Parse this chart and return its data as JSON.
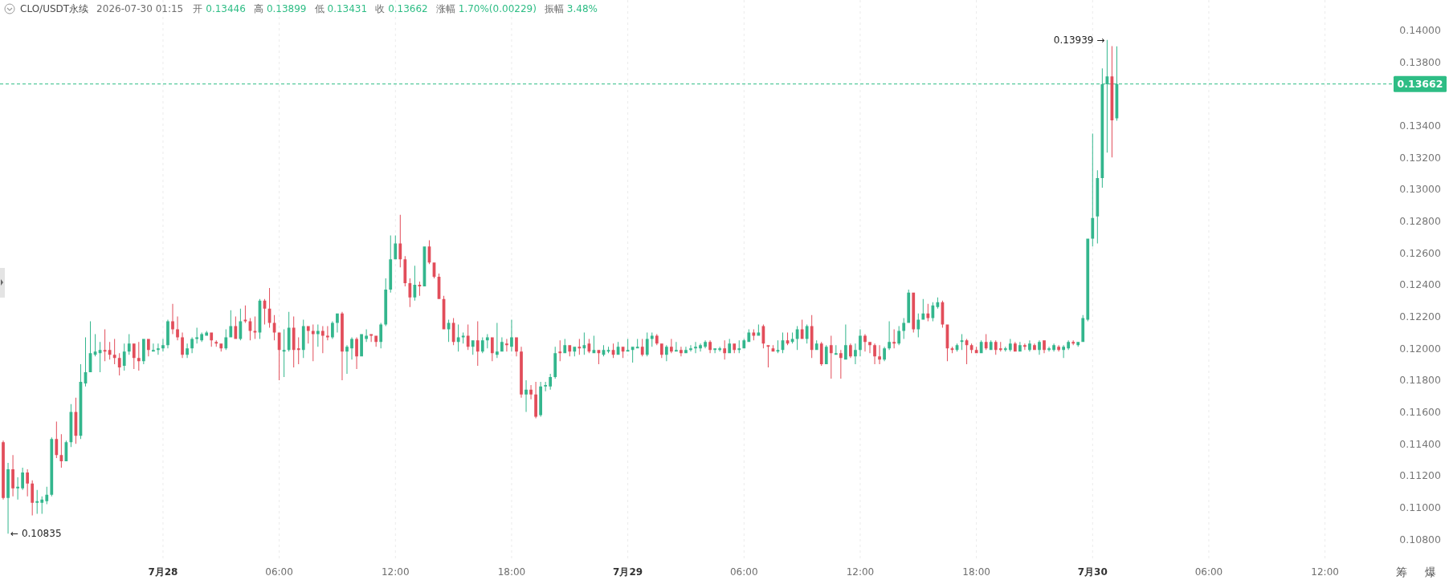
{
  "chart_data": {
    "type": "candlestick",
    "title": "CLO/USDT永续",
    "subtitle": "2026-07-30 01:15",
    "annotations": [
      "开 0.13446",
      "高 0.13899",
      "低 0.13431",
      "收 0.13662",
      "涨幅 1.70%(0.00229)",
      "振幅 3.48%",
      "筹",
      "爆",
      {
        "text": "← 0.10835",
        "x": "2026-07-27T16:00",
        "y": 0.10835
      },
      {
        "text": "0.13939 →",
        "x": "2026-07-30T00:45",
        "y": 0.13939
      }
    ],
    "x": [
      "2026-07-27T15:45",
      "2026-07-27T16:00",
      "2026-07-27T16:15",
      "2026-07-27T16:30",
      "2026-07-27T16:45",
      "2026-07-27T17:00",
      "2026-07-27T17:15",
      "2026-07-27T17:30",
      "2026-07-27T17:45",
      "2026-07-27T18:00",
      "2026-07-27T18:15",
      "2026-07-27T18:30",
      "2026-07-27T18:45",
      "2026-07-27T19:00",
      "2026-07-27T19:15",
      "2026-07-27T19:30",
      "2026-07-27T19:45",
      "2026-07-27T20:00",
      "2026-07-27T20:15",
      "2026-07-27T20:30",
      "2026-07-27T20:45",
      "2026-07-27T21:00",
      "2026-07-27T21:15",
      "2026-07-27T21:30",
      "2026-07-27T21:45",
      "2026-07-27T22:00",
      "2026-07-27T22:15",
      "2026-07-27T22:30",
      "2026-07-27T22:45",
      "2026-07-27T23:00",
      "2026-07-27T23:15",
      "2026-07-27T23:30",
      "2026-07-27T23:45",
      "2026-07-28T00:00",
      "2026-07-28T00:15",
      "2026-07-28T00:30",
      "2026-07-28T00:45",
      "2026-07-28T01:00",
      "2026-07-28T01:15",
      "2026-07-28T01:30",
      "2026-07-28T01:45",
      "2026-07-28T02:00",
      "2026-07-28T02:15",
      "2026-07-28T02:30",
      "2026-07-28T02:45",
      "2026-07-28T03:00",
      "2026-07-28T03:15",
      "2026-07-28T03:30",
      "2026-07-28T03:45",
      "2026-07-28T04:00",
      "2026-07-28T04:15",
      "2026-07-28T04:30",
      "2026-07-28T04:45",
      "2026-07-28T05:00",
      "2026-07-28T05:15",
      "2026-07-28T05:30",
      "2026-07-28T05:45",
      "2026-07-28T06:00",
      "2026-07-28T06:15",
      "2026-07-28T06:30",
      "2026-07-28T06:45",
      "2026-07-28T07:00",
      "2026-07-28T07:15",
      "2026-07-28T07:30",
      "2026-07-28T07:45",
      "2026-07-28T08:00",
      "2026-07-28T08:15",
      "2026-07-28T08:30",
      "2026-07-28T08:45",
      "2026-07-28T09:00",
      "2026-07-28T09:15",
      "2026-07-28T09:30",
      "2026-07-28T09:45",
      "2026-07-28T10:00",
      "2026-07-28T10:15",
      "2026-07-28T10:30",
      "2026-07-28T10:45",
      "2026-07-28T11:00",
      "2026-07-28T11:15",
      "2026-07-28T11:30",
      "2026-07-28T11:45",
      "2026-07-28T12:00",
      "2026-07-28T12:15",
      "2026-07-28T12:30",
      "2026-07-28T12:45",
      "2026-07-28T13:00",
      "2026-07-28T13:15",
      "2026-07-28T13:30",
      "2026-07-28T13:45",
      "2026-07-28T14:00",
      "2026-07-28T14:15",
      "2026-07-28T14:30",
      "2026-07-28T14:45",
      "2026-07-28T15:00",
      "2026-07-28T15:15",
      "2026-07-28T15:30",
      "2026-07-28T15:45",
      "2026-07-28T16:00",
      "2026-07-28T16:15",
      "2026-07-28T16:30",
      "2026-07-28T16:45",
      "2026-07-28T17:00",
      "2026-07-28T17:15",
      "2026-07-28T17:30",
      "2026-07-28T17:45",
      "2026-07-28T18:00",
      "2026-07-28T18:15",
      "2026-07-28T18:30",
      "2026-07-28T18:45",
      "2026-07-28T19:00",
      "2026-07-28T19:15",
      "2026-07-28T19:30",
      "2026-07-28T19:45",
      "2026-07-28T20:00",
      "2026-07-28T20:15",
      "2026-07-28T20:30",
      "2026-07-28T20:45",
      "2026-07-28T21:00",
      "2026-07-28T21:15",
      "2026-07-28T21:30",
      "2026-07-28T21:45",
      "2026-07-28T22:00",
      "2026-07-28T22:15",
      "2026-07-28T22:30",
      "2026-07-28T22:45",
      "2026-07-28T23:00",
      "2026-07-28T23:15",
      "2026-07-28T23:30",
      "2026-07-28T23:45",
      "2026-07-29T00:00",
      "2026-07-29T00:15",
      "2026-07-29T00:30",
      "2026-07-29T00:45",
      "2026-07-29T01:00",
      "2026-07-29T01:15",
      "2026-07-29T01:30",
      "2026-07-29T01:45",
      "2026-07-29T02:00",
      "2026-07-29T02:15",
      "2026-07-29T02:30",
      "2026-07-29T02:45",
      "2026-07-29T03:00",
      "2026-07-29T03:15",
      "2026-07-29T03:30",
      "2026-07-29T03:45",
      "2026-07-29T04:00",
      "2026-07-29T04:15",
      "2026-07-29T04:30",
      "2026-07-29T04:45",
      "2026-07-29T05:00",
      "2026-07-29T05:15",
      "2026-07-29T05:30",
      "2026-07-29T05:45",
      "2026-07-29T06:00",
      "2026-07-29T06:15",
      "2026-07-29T06:30",
      "2026-07-29T06:45",
      "2026-07-29T07:00",
      "2026-07-29T07:15",
      "2026-07-29T07:30",
      "2026-07-29T07:45",
      "2026-07-29T08:00",
      "2026-07-29T08:15",
      "2026-07-29T08:30",
      "2026-07-29T08:45",
      "2026-07-29T09:00",
      "2026-07-29T09:15",
      "2026-07-29T09:30",
      "2026-07-29T09:45",
      "2026-07-29T10:00",
      "2026-07-29T10:15",
      "2026-07-29T10:30",
      "2026-07-29T10:45",
      "2026-07-29T11:00",
      "2026-07-29T11:15",
      "2026-07-29T11:30",
      "2026-07-29T11:45",
      "2026-07-29T12:00",
      "2026-07-29T12:15",
      "2026-07-29T12:30",
      "2026-07-29T12:45",
      "2026-07-29T13:00",
      "2026-07-29T13:15",
      "2026-07-29T13:30",
      "2026-07-29T13:45",
      "2026-07-29T14:00",
      "2026-07-29T14:15",
      "2026-07-29T14:30",
      "2026-07-29T14:45",
      "2026-07-29T15:00",
      "2026-07-29T15:15",
      "2026-07-29T15:30",
      "2026-07-29T15:45",
      "2026-07-29T16:00",
      "2026-07-29T16:15",
      "2026-07-29T16:30",
      "2026-07-29T16:45",
      "2026-07-29T17:00",
      "2026-07-29T17:15",
      "2026-07-29T17:30",
      "2026-07-29T17:45",
      "2026-07-29T18:00",
      "2026-07-29T18:15",
      "2026-07-29T18:30",
      "2026-07-29T18:45",
      "2026-07-29T19:00",
      "2026-07-29T19:15",
      "2026-07-29T19:30",
      "2026-07-29T19:45",
      "2026-07-29T20:00",
      "2026-07-29T20:15",
      "2026-07-29T20:30",
      "2026-07-29T20:45",
      "2026-07-29T21:00",
      "2026-07-29T21:15",
      "2026-07-29T21:30",
      "2026-07-29T21:45",
      "2026-07-29T22:00",
      "2026-07-29T22:15",
      "2026-07-29T22:30",
      "2026-07-29T22:45",
      "2026-07-29T23:00",
      "2026-07-29T23:15",
      "2026-07-29T23:30",
      "2026-07-29T23:45",
      "2026-07-30T00:00",
      "2026-07-30T00:15",
      "2026-07-30T00:30",
      "2026-07-30T00:45",
      "2026-07-30T01:00",
      "2026-07-30T01:15"
    ],
    "ohlc": [
      [
        0.1141,
        0.1142,
        0.1105,
        0.1106
      ],
      [
        0.1106,
        0.1128,
        0.10835,
        0.1124
      ],
      [
        0.1124,
        0.1133,
        0.1107,
        0.1112
      ],
      [
        0.1112,
        0.1119,
        0.1105,
        0.1113
      ],
      [
        0.1112,
        0.1125,
        0.1111,
        0.1122
      ],
      [
        0.1122,
        0.1124,
        0.1107,
        0.1115
      ],
      [
        0.1115,
        0.1117,
        0.1095,
        0.1103
      ],
      [
        0.1103,
        0.1111,
        0.1096,
        0.1104
      ],
      [
        0.1103,
        0.1107,
        0.1096,
        0.1105
      ],
      [
        0.1104,
        0.1113,
        0.1102,
        0.1108
      ],
      [
        0.1108,
        0.1144,
        0.1107,
        0.1143
      ],
      [
        0.1143,
        0.1154,
        0.1131,
        0.1133
      ],
      [
        0.1133,
        0.1146,
        0.1125,
        0.1129
      ],
      [
        0.1129,
        0.1142,
        0.1129,
        0.1141
      ],
      [
        0.1141,
        0.1165,
        0.1138,
        0.116
      ],
      [
        0.116,
        0.1169,
        0.114,
        0.1145
      ],
      [
        0.1145,
        0.119,
        0.1143,
        0.1179
      ],
      [
        0.1178,
        0.1207,
        0.1176,
        0.1185
      ],
      [
        0.1185,
        0.1217,
        0.1185,
        0.1197
      ],
      [
        0.1196,
        0.1209,
        0.1195,
        0.1198
      ],
      [
        0.1197,
        0.1204,
        0.1185,
        0.1199
      ],
      [
        0.1199,
        0.1212,
        0.1192,
        0.1198
      ],
      [
        0.1199,
        0.1204,
        0.1193,
        0.1196
      ],
      [
        0.1196,
        0.1206,
        0.119,
        0.1194
      ],
      [
        0.1194,
        0.1197,
        0.1183,
        0.1188
      ],
      [
        0.1189,
        0.1203,
        0.1186,
        0.1198
      ],
      [
        0.1198,
        0.1209,
        0.1196,
        0.1203
      ],
      [
        0.1203,
        0.1203,
        0.1187,
        0.1194
      ],
      [
        0.1194,
        0.1204,
        0.1186,
        0.1192
      ],
      [
        0.1192,
        0.1206,
        0.119,
        0.1206
      ],
      [
        0.1206,
        0.1206,
        0.1195,
        0.1199
      ],
      [
        0.1198,
        0.1203,
        0.1198,
        0.1199
      ],
      [
        0.1199,
        0.1203,
        0.1196,
        0.12
      ],
      [
        0.12,
        0.1206,
        0.1198,
        0.1202
      ],
      [
        0.1202,
        0.1218,
        0.12,
        0.1217
      ],
      [
        0.1217,
        0.1228,
        0.1209,
        0.1212
      ],
      [
        0.1212,
        0.122,
        0.1205,
        0.1207
      ],
      [
        0.1207,
        0.121,
        0.1194,
        0.1196
      ],
      [
        0.1196,
        0.1203,
        0.1194,
        0.12
      ],
      [
        0.12,
        0.1207,
        0.1197,
        0.1206
      ],
      [
        0.1206,
        0.1213,
        0.1203,
        0.1207
      ],
      [
        0.1205,
        0.121,
        0.1204,
        0.1209
      ],
      [
        0.1208,
        0.1211,
        0.1208,
        0.121
      ],
      [
        0.121,
        0.121,
        0.1201,
        0.1205
      ],
      [
        0.1204,
        0.1205,
        0.1201,
        0.1203
      ],
      [
        0.1203,
        0.1203,
        0.1198,
        0.12
      ],
      [
        0.12,
        0.1212,
        0.1199,
        0.1207
      ],
      [
        0.1207,
        0.1224,
        0.1207,
        0.1214
      ],
      [
        0.1214,
        0.122,
        0.1206,
        0.1206
      ],
      [
        0.1206,
        0.1225,
        0.1205,
        0.1217
      ],
      [
        0.1218,
        0.1227,
        0.1216,
        0.1217
      ],
      [
        0.1217,
        0.1219,
        0.1205,
        0.1211
      ],
      [
        0.1211,
        0.122,
        0.1206,
        0.121
      ],
      [
        0.121,
        0.1231,
        0.1206,
        0.123
      ],
      [
        0.123,
        0.1231,
        0.1215,
        0.1225
      ],
      [
        0.1225,
        0.1238,
        0.1213,
        0.1216
      ],
      [
        0.1216,
        0.1221,
        0.1205,
        0.121
      ],
      [
        0.121,
        0.121,
        0.118,
        0.1199
      ],
      [
        0.1198,
        0.1212,
        0.1182,
        0.1199
      ],
      [
        0.1199,
        0.1223,
        0.1198,
        0.1213
      ],
      [
        0.1213,
        0.122,
        0.1188,
        0.1199
      ],
      [
        0.12,
        0.1207,
        0.119,
        0.1199
      ],
      [
        0.1199,
        0.1218,
        0.1194,
        0.1214
      ],
      [
        0.1214,
        0.1214,
        0.1203,
        0.1211
      ],
      [
        0.1211,
        0.1215,
        0.1192,
        0.1209
      ],
      [
        0.1209,
        0.1215,
        0.1201,
        0.1211
      ],
      [
        0.1211,
        0.1214,
        0.1197,
        0.1208
      ],
      [
        0.1208,
        0.1214,
        0.1205,
        0.1207
      ],
      [
        0.1207,
        0.1217,
        0.1206,
        0.1216
      ],
      [
        0.1216,
        0.1222,
        0.121,
        0.1222
      ],
      [
        0.1222,
        0.1223,
        0.118,
        0.1198
      ],
      [
        0.1198,
        0.1202,
        0.1184,
        0.1201
      ],
      [
        0.12,
        0.1207,
        0.1193,
        0.1206
      ],
      [
        0.1206,
        0.1207,
        0.1187,
        0.1195
      ],
      [
        0.1195,
        0.1209,
        0.1195,
        0.1209
      ],
      [
        0.1206,
        0.1212,
        0.1204,
        0.1208
      ],
      [
        0.1209,
        0.1209,
        0.1204,
        0.1208
      ],
      [
        0.1208,
        0.1208,
        0.1201,
        0.1204
      ],
      [
        0.1204,
        0.1216,
        0.12,
        0.1215
      ],
      [
        0.1215,
        0.1244,
        0.1214,
        0.1237
      ],
      [
        0.1237,
        0.1271,
        0.1235,
        0.1256
      ],
      [
        0.1256,
        0.1271,
        0.1256,
        0.1266
      ],
      [
        0.1266,
        0.1284,
        0.1251,
        0.1256
      ],
      [
        0.1256,
        0.1258,
        0.1239,
        0.1241
      ],
      [
        0.1241,
        0.1244,
        0.1226,
        0.1232
      ],
      [
        0.1232,
        0.1252,
        0.123,
        0.124
      ],
      [
        0.124,
        0.1242,
        0.1233,
        0.1239
      ],
      [
        0.1239,
        0.1264,
        0.1239,
        0.1264
      ],
      [
        0.1264,
        0.1268,
        0.1253,
        0.1254
      ],
      [
        0.1254,
        0.1254,
        0.1244,
        0.1245
      ],
      [
        0.1245,
        0.1247,
        0.1231,
        0.1231
      ],
      [
        0.1231,
        0.1233,
        0.1212,
        0.1212
      ],
      [
        0.1212,
        0.1218,
        0.1204,
        0.1216
      ],
      [
        0.1216,
        0.1219,
        0.1202,
        0.1204
      ],
      [
        0.1204,
        0.1215,
        0.1198,
        0.1207
      ],
      [
        0.1207,
        0.121,
        0.1203,
        0.1208
      ],
      [
        0.1208,
        0.1215,
        0.1199,
        0.1201
      ],
      [
        0.1201,
        0.1205,
        0.1196,
        0.1205
      ],
      [
        0.1205,
        0.1217,
        0.1189,
        0.1198
      ],
      [
        0.1198,
        0.1207,
        0.1197,
        0.1205
      ],
      [
        0.1205,
        0.1209,
        0.12,
        0.1207
      ],
      [
        0.1207,
        0.1207,
        0.1192,
        0.1197
      ],
      [
        0.1196,
        0.1216,
        0.1194,
        0.1198
      ],
      [
        0.1198,
        0.1207,
        0.1198,
        0.1204
      ],
      [
        0.1203,
        0.1206,
        0.1198,
        0.1202
      ],
      [
        0.1201,
        0.1218,
        0.1198,
        0.1207
      ],
      [
        0.1207,
        0.1207,
        0.1195,
        0.1198
      ],
      [
        0.1198,
        0.1201,
        0.1169,
        0.1171
      ],
      [
        0.1171,
        0.118,
        0.116,
        0.1174
      ],
      [
        0.1174,
        0.1177,
        0.1168,
        0.1171
      ],
      [
        0.1171,
        0.1179,
        0.1156,
        0.1157
      ],
      [
        0.1158,
        0.1179,
        0.1157,
        0.1176
      ],
      [
        0.1176,
        0.1179,
        0.1173,
        0.1177
      ],
      [
        0.1176,
        0.1184,
        0.1174,
        0.1182
      ],
      [
        0.1182,
        0.1201,
        0.1181,
        0.1197
      ],
      [
        0.1198,
        0.1205,
        0.1192,
        0.1197
      ],
      [
        0.1197,
        0.1206,
        0.1197,
        0.1202
      ],
      [
        0.1202,
        0.1202,
        0.1195,
        0.1198
      ],
      [
        0.1198,
        0.1201,
        0.1195,
        0.1201
      ],
      [
        0.1201,
        0.1206,
        0.1196,
        0.12
      ],
      [
        0.12,
        0.121,
        0.1196,
        0.1202
      ],
      [
        0.1203,
        0.1206,
        0.1197,
        0.1198
      ],
      [
        0.1197,
        0.1208,
        0.1197,
        0.1199
      ],
      [
        0.1199,
        0.1199,
        0.119,
        0.1197
      ],
      [
        0.1196,
        0.1202,
        0.1195,
        0.1199
      ],
      [
        0.1198,
        0.1201,
        0.1197,
        0.1199
      ],
      [
        0.1199,
        0.1203,
        0.1194,
        0.1196
      ],
      [
        0.1196,
        0.1204,
        0.1196,
        0.1201
      ],
      [
        0.1201,
        0.1201,
        0.1194,
        0.1198
      ],
      [
        0.1198,
        0.1206,
        0.1198,
        0.1199
      ],
      [
        0.1199,
        0.1201,
        0.1191,
        0.1201
      ],
      [
        0.12,
        0.1206,
        0.12,
        0.1201
      ],
      [
        0.1201,
        0.1206,
        0.1195,
        0.1196
      ],
      [
        0.1196,
        0.121,
        0.1195,
        0.1206
      ],
      [
        0.1206,
        0.121,
        0.1201,
        0.1208
      ],
      [
        0.1208,
        0.1209,
        0.1202,
        0.1203
      ],
      [
        0.1203,
        0.1203,
        0.1194,
        0.1196
      ],
      [
        0.1196,
        0.1202,
        0.1192,
        0.1201
      ],
      [
        0.1201,
        0.1206,
        0.1197,
        0.1198
      ],
      [
        0.1198,
        0.1204,
        0.1198,
        0.1199
      ],
      [
        0.1199,
        0.1201,
        0.1195,
        0.1197
      ],
      [
        0.1197,
        0.1201,
        0.1197,
        0.1199
      ],
      [
        0.1199,
        0.1202,
        0.1198,
        0.12
      ],
      [
        0.12,
        0.1204,
        0.1197,
        0.1201
      ],
      [
        0.12,
        0.1203,
        0.1198,
        0.1202
      ],
      [
        0.1201,
        0.1205,
        0.12,
        0.1204
      ],
      [
        0.1204,
        0.1205,
        0.1197,
        0.1199
      ],
      [
        0.1199,
        0.12,
        0.1197,
        0.12
      ],
      [
        0.1199,
        0.1201,
        0.1198,
        0.12
      ],
      [
        0.12,
        0.1205,
        0.1193,
        0.1197
      ],
      [
        0.1197,
        0.1206,
        0.1197,
        0.1203
      ],
      [
        0.1203,
        0.1203,
        0.1197,
        0.1199
      ],
      [
        0.1199,
        0.1205,
        0.1197,
        0.12
      ],
      [
        0.12,
        0.1206,
        0.12,
        0.1205
      ],
      [
        0.1204,
        0.1212,
        0.1204,
        0.121
      ],
      [
        0.121,
        0.1212,
        0.1205,
        0.1208
      ],
      [
        0.1208,
        0.1215,
        0.1208,
        0.121
      ],
      [
        0.1214,
        0.1215,
        0.12,
        0.1203
      ],
      [
        0.1202,
        0.1202,
        0.1188,
        0.1201
      ],
      [
        0.12,
        0.1202,
        0.1198,
        0.1198
      ],
      [
        0.1198,
        0.1205,
        0.1197,
        0.1199
      ],
      [
        0.1199,
        0.121,
        0.1197,
        0.1205
      ],
      [
        0.1205,
        0.121,
        0.1202,
        0.1203
      ],
      [
        0.1204,
        0.121,
        0.1203,
        0.1206
      ],
      [
        0.1206,
        0.1214,
        0.1199,
        0.1212
      ],
      [
        0.1212,
        0.1218,
        0.1206,
        0.1206
      ],
      [
        0.1206,
        0.1215,
        0.1203,
        0.1214
      ],
      [
        0.1214,
        0.1221,
        0.1194,
        0.1199
      ],
      [
        0.1199,
        0.1205,
        0.1199,
        0.1203
      ],
      [
        0.1203,
        0.1204,
        0.1189,
        0.119
      ],
      [
        0.119,
        0.1202,
        0.119,
        0.1201
      ],
      [
        0.1202,
        0.1208,
        0.1181,
        0.1197
      ],
      [
        0.1196,
        0.1202,
        0.1196,
        0.1197
      ],
      [
        0.1197,
        0.1199,
        0.1181,
        0.1194
      ],
      [
        0.1193,
        0.1215,
        0.1193,
        0.1202
      ],
      [
        0.1202,
        0.1203,
        0.1194,
        0.1195
      ],
      [
        0.1195,
        0.1203,
        0.119,
        0.1199
      ],
      [
        0.1199,
        0.1212,
        0.1195,
        0.1208
      ],
      [
        0.1208,
        0.1209,
        0.1198,
        0.1204
      ],
      [
        0.1204,
        0.1204,
        0.1197,
        0.1202
      ],
      [
        0.1202,
        0.1203,
        0.119,
        0.1195
      ],
      [
        0.1195,
        0.1202,
        0.119,
        0.1193
      ],
      [
        0.1193,
        0.1201,
        0.1192,
        0.12
      ],
      [
        0.12,
        0.1217,
        0.1199,
        0.1204
      ],
      [
        0.1204,
        0.1212,
        0.12,
        0.1203
      ],
      [
        0.1203,
        0.1214,
        0.1202,
        0.1211
      ],
      [
        0.1211,
        0.1219,
        0.1206,
        0.1216
      ],
      [
        0.1216,
        0.1237,
        0.1216,
        0.1235
      ],
      [
        0.1235,
        0.1235,
        0.121,
        0.1212
      ],
      [
        0.1212,
        0.1222,
        0.1207,
        0.1218
      ],
      [
        0.1218,
        0.1231,
        0.1218,
        0.1222
      ],
      [
        0.1222,
        0.1228,
        0.1217,
        0.1219
      ],
      [
        0.1219,
        0.1229,
        0.1217,
        0.1227
      ],
      [
        0.1226,
        0.1232,
        0.1225,
        0.1229
      ],
      [
        0.1229,
        0.123,
        0.1213,
        0.1215
      ],
      [
        0.1215,
        0.1215,
        0.1192,
        0.12
      ],
      [
        0.12,
        0.1201,
        0.1197,
        0.1199
      ],
      [
        0.1199,
        0.1203,
        0.1198,
        0.1202
      ],
      [
        0.1204,
        0.1209,
        0.1199,
        0.1205
      ],
      [
        0.1205,
        0.1206,
        0.119,
        0.1202
      ],
      [
        0.1202,
        0.1203,
        0.1197,
        0.1199
      ],
      [
        0.1199,
        0.1201,
        0.1197,
        0.1197
      ],
      [
        0.1197,
        0.1205,
        0.1197,
        0.1204
      ],
      [
        0.1204,
        0.1209,
        0.1199,
        0.12
      ],
      [
        0.1199,
        0.1205,
        0.1199,
        0.1204
      ],
      [
        0.1204,
        0.1205,
        0.1196,
        0.1199
      ],
      [
        0.12,
        0.1204,
        0.1198,
        0.1199
      ],
      [
        0.1199,
        0.1201,
        0.1198,
        0.12
      ],
      [
        0.1199,
        0.1206,
        0.1198,
        0.1203
      ],
      [
        0.1203,
        0.1204,
        0.1198,
        0.1198
      ],
      [
        0.1198,
        0.1204,
        0.1198,
        0.1202
      ],
      [
        0.1202,
        0.1203,
        0.1199,
        0.1201
      ],
      [
        0.1199,
        0.1205,
        0.1198,
        0.1203
      ],
      [
        0.1202,
        0.1203,
        0.1199,
        0.1199
      ],
      [
        0.1199,
        0.1205,
        0.1196,
        0.1204
      ],
      [
        0.1205,
        0.1205,
        0.1197,
        0.1199
      ],
      [
        0.1199,
        0.1201,
        0.1198,
        0.12
      ],
      [
        0.1199,
        0.1203,
        0.1198,
        0.1202
      ],
      [
        0.1201,
        0.1202,
        0.1198,
        0.1199
      ],
      [
        0.1199,
        0.1202,
        0.1194,
        0.1201
      ],
      [
        0.12,
        0.1205,
        0.1199,
        0.1204
      ],
      [
        0.1204,
        0.1205,
        0.1202,
        0.1203
      ],
      [
        0.1202,
        0.1204,
        0.1201,
        0.1204
      ],
      [
        0.1204,
        0.1221,
        0.1204,
        0.1219
      ],
      [
        0.1218,
        0.1269,
        0.1217,
        0.1269
      ],
      [
        0.1269,
        0.1335,
        0.1264,
        0.1282
      ],
      [
        0.1283,
        0.1312,
        0.1266,
        0.1307
      ],
      [
        0.1307,
        0.1376,
        0.1301,
        0.1366
      ],
      [
        0.1366,
        0.13939,
        0.1323,
        0.1371
      ],
      [
        0.1371,
        0.139,
        0.132,
        0.13433
      ],
      [
        0.13446,
        0.13899,
        0.13431,
        0.13662
      ]
    ],
    "colors": [
      "#e24d5a",
      "#33b68d",
      "#e24d5a",
      "#33b68d",
      "#33b68d",
      "#e24d5a",
      "#e24d5a",
      "#33b68d",
      "#33b68d",
      "#33b68d",
      "#33b68d",
      "#e24d5a",
      "#e24d5a",
      "#33b68d",
      "#33b68d",
      "#e24d5a",
      "#33b68d",
      "#33b68d",
      "#33b68d",
      "#33b68d",
      "#33b68d",
      "#e24d5a",
      "#e24d5a",
      "#e24d5a",
      "#e24d5a",
      "#33b68d",
      "#33b68d",
      "#e24d5a",
      "#e24d5a",
      "#33b68d",
      "#e24d5a",
      "#33b68d",
      "#33b68d",
      "#33b68d",
      "#33b68d",
      "#e24d5a",
      "#e24d5a",
      "#e24d5a",
      "#33b68d",
      "#33b68d",
      "#33b68d",
      "#33b68d",
      "#33b68d",
      "#e24d5a",
      "#e24d5a",
      "#e24d5a",
      "#33b68d",
      "#33b68d",
      "#e24d5a",
      "#33b68d",
      "#e24d5a",
      "#e24d5a",
      "#e24d5a",
      "#33b68d",
      "#e24d5a",
      "#e24d5a",
      "#e24d5a",
      "#e24d5a",
      "#33b68d",
      "#33b68d",
      "#e24d5a",
      "#e24d5a",
      "#33b68d",
      "#e24d5a",
      "#e24d5a",
      "#33b68d",
      "#e24d5a",
      "#e24d5a",
      "#33b68d",
      "#33b68d",
      "#e24d5a",
      "#33b68d",
      "#33b68d",
      "#e24d5a",
      "#33b68d",
      "#33b68d",
      "#e24d5a",
      "#e24d5a",
      "#33b68d",
      "#33b68d",
      "#33b68d",
      "#33b68d",
      "#e24d5a",
      "#e24d5a",
      "#e24d5a",
      "#33b68d",
      "#e24d5a",
      "#33b68d",
      "#e24d5a",
      "#e24d5a",
      "#e24d5a",
      "#e24d5a",
      "#33b68d",
      "#e24d5a",
      "#33b68d",
      "#33b68d",
      "#e24d5a",
      "#33b68d",
      "#e24d5a",
      "#33b68d",
      "#33b68d",
      "#e24d5a",
      "#33b68d",
      "#33b68d",
      "#e24d5a",
      "#33b68d",
      "#e24d5a",
      "#e24d5a",
      "#33b68d",
      "#e24d5a",
      "#e24d5a",
      "#33b68d",
      "#33b68d",
      "#33b68d",
      "#33b68d",
      "#e24d5a",
      "#33b68d",
      "#e24d5a",
      "#33b68d",
      "#e24d5a",
      "#33b68d",
      "#e24d5a",
      "#33b68d",
      "#e24d5a",
      "#33b68d",
      "#33b68d",
      "#e24d5a",
      "#33b68d",
      "#e24d5a",
      "#33b68d",
      "#33b68d",
      "#33b68d",
      "#e24d5a",
      "#33b68d",
      "#33b68d",
      "#e24d5a",
      "#e24d5a",
      "#33b68d",
      "#e24d5a",
      "#33b68d",
      "#e24d5a",
      "#33b68d",
      "#33b68d",
      "#33b68d",
      "#33b68d",
      "#33b68d",
      "#e24d5a",
      "#33b68d",
      "#33b68d",
      "#e24d5a",
      "#33b68d",
      "#e24d5a",
      "#33b68d",
      "#33b68d",
      "#33b68d",
      "#e24d5a",
      "#33b68d",
      "#e24d5a",
      "#e24d5a",
      "#e24d5a",
      "#33b68d",
      "#33b68d",
      "#e24d5a",
      "#33b68d",
      "#33b68d",
      "#e24d5a",
      "#33b68d",
      "#e24d5a",
      "#33b68d",
      "#e24d5a",
      "#33b68d",
      "#e24d5a",
      "#33b68d",
      "#e24d5a",
      "#33b68d",
      "#e24d5a",
      "#33b68d",
      "#33b68d",
      "#e24d5a",
      "#e24d5a",
      "#e24d5a",
      "#e24d5a",
      "#33b68d",
      "#33b68d",
      "#e24d5a",
      "#33b68d",
      "#33b68d",
      "#33b68d",
      "#e24d5a",
      "#33b68d",
      "#33b68d",
      "#e24d5a",
      "#33b68d",
      "#33b68d",
      "#e24d5a",
      "#e24d5a",
      "#e24d5a",
      "#33b68d",
      "#33b68d",
      "#e24d5a",
      "#e24d5a",
      "#e24d5a",
      "#33b68d",
      "#e24d5a",
      "#33b68d",
      "#e24d5a",
      "#e24d5a",
      "#33b68d",
      "#33b68d",
      "#e24d5a",
      "#33b68d",
      "#e24d5a",
      "#33b68d",
      "#e24d5a",
      "#33b68d",
      "#e24d5a",
      "#33b68d",
      "#33b68d",
      "#e24d5a",
      "#33b68d",
      "#33b68d",
      "#e24d5a",
      "#33b68d",
      "#33b68d",
      "#33b68d",
      "#33b68d",
      "#33b68d",
      "#33b68d",
      "#33b68d",
      "#e24d5a",
      "#33b68d"
    ],
    "xlim": [
      "2026-07-27T15:35",
      "2026-07-30T15:20"
    ],
    "xticks": [
      {
        "value": "2026-07-28",
        "label": "7月28"
      },
      {
        "value": "2026-07-28T06:00",
        "label": "06:00"
      },
      {
        "value": "2026-07-28T12:00",
        "label": "12:00"
      },
      {
        "value": "2026-07-28T18:00",
        "label": "18:00"
      },
      {
        "value": "2026-07-29",
        "label": "7月29"
      },
      {
        "value": "2026-07-29T06:00",
        "label": "06:00"
      },
      {
        "value": "2026-07-29T12:00",
        "label": "12:00"
      },
      {
        "value": "2026-07-29T18:00",
        "label": "18:00"
      },
      {
        "value": "2026-07-30",
        "label": "7月30"
      },
      {
        "value": "2026-07-30T06:00",
        "label": "06:00"
      },
      {
        "value": "2026-07-30T12:00",
        "label": "12:00"
      }
    ],
    "ylim": [
      0.1066,
      0.1419
    ],
    "yticks": [
      {
        "value": 0.108,
        "label": "0.10800"
      },
      {
        "value": 0.11,
        "label": "0.11000"
      },
      {
        "value": 0.112,
        "label": "0.11200"
      },
      {
        "value": 0.114,
        "label": "0.11400"
      },
      {
        "value": 0.116,
        "label": "0.11600"
      },
      {
        "value": 0.118,
        "label": "0.11800"
      },
      {
        "value": 0.12,
        "label": "0.12000"
      },
      {
        "value": 0.122,
        "label": "0.12200"
      },
      {
        "value": 0.124,
        "label": "0.12400"
      },
      {
        "value": 0.126,
        "label": "0.12600"
      },
      {
        "value": 0.128,
        "label": "0.12800"
      },
      {
        "value": 0.13,
        "label": "0.13000"
      },
      {
        "value": 0.132,
        "label": "0.13200"
      },
      {
        "value": 0.134,
        "label": "0.13400"
      },
      {
        "value": 0.138,
        "label": "0.13800"
      },
      {
        "value": 0.14,
        "label": "0.14000"
      }
    ],
    "ref_lines": [
      {
        "axis": "y",
        "value": 0.13662,
        "label": "0.13662",
        "color": "#2ebd85",
        "line_style": "dashed"
      }
    ],
    "grid": "x"
  }
}
